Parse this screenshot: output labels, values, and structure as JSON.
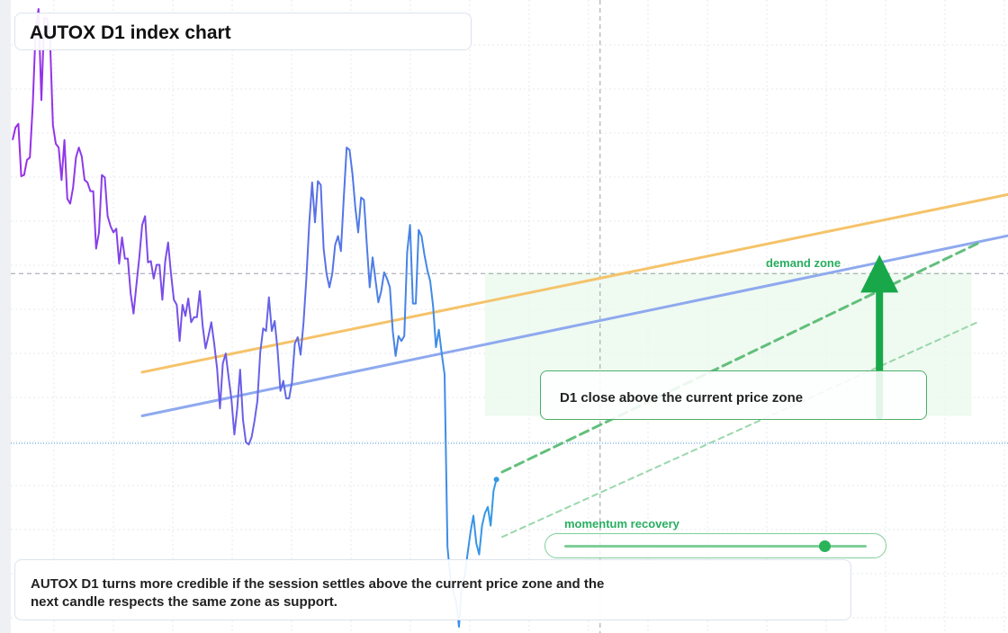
{
  "page": {
    "title": "AUTOX D1 index chart",
    "callout": "D1 close above the current price zone",
    "demand_label": "demand zone",
    "momentum": {
      "label": "momentum recovery",
      "value": 0.86
    },
    "note": "AUTOX D1 turns more credible if the session settles above the current price zone and the next candle respects the same zone as support."
  },
  "colors": {
    "price_start": "#9b2be8",
    "price_end": "#3399e6",
    "orange_line": "#f5c36a",
    "blue_line": "#8ea9ee",
    "green": "#18a84a",
    "zone_fill": "#eaf8ec"
  },
  "chart_data": {
    "type": "line",
    "title": "AUTOX D1 index chart",
    "ylim": [
      0,
      100
    ],
    "current_price": 30.4,
    "series": [
      {
        "values": [
          79,
          81,
          81.6,
          73.2,
          73.4,
          75.8,
          76.2,
          84.6,
          96.6,
          100,
          85.4,
          98.6,
          98.4,
          95.2,
          81.4,
          78.4,
          77.8,
          72.6,
          79,
          69.6,
          68.8,
          71.4,
          76.2,
          77.8,
          76.4,
          72.6,
          72.2,
          70.8,
          70.8,
          61.6,
          64.2,
          73.4,
          73,
          66.8,
          65.2,
          64.2,
          64.8,
          59.2,
          63.4,
          60,
          60,
          54.4,
          51.2,
          55.8,
          60.2,
          65.4,
          66.8,
          59.4,
          59.6,
          56.8,
          59,
          59,
          53.4,
          59.6,
          62.6,
          57.6,
          53.4,
          52.6,
          46.8,
          52.6,
          50.8,
          53.6,
          49.8,
          50.6,
          50.6,
          54.8,
          49.2,
          45.6,
          47.6,
          49.8,
          46.4,
          42.4,
          36,
          43.2,
          44.8,
          41,
          37.4,
          31.8,
          36,
          42.2,
          34.2,
          30.6,
          30.2,
          31.4,
          34,
          37.2,
          45,
          48.8,
          48.4,
          53.8,
          48.4,
          50,
          45.4,
          38.8,
          40.4,
          37.6,
          37.6,
          40.2,
          46.4,
          47.4,
          44.6,
          49.6,
          56.8,
          65.6,
          72.2,
          65.8,
          72.4,
          71.8,
          61.6,
          57.6,
          55.4,
          57.6,
          62.2,
          63.6,
          61.2,
          69.8,
          77.8,
          77.4,
          73.6,
          68.2,
          64.2,
          69.8,
          69.4,
          62.2,
          55.4,
          60.2,
          56.6,
          53,
          54.8,
          57.8,
          56.8,
          55.4,
          48.4,
          44.4,
          47.6,
          46.8,
          47.6,
          61,
          65.4,
          52.8,
          52.8,
          64.6,
          63.6,
          60.6,
          58.2,
          56.4,
          52.4,
          45.8,
          48.6,
          44.8,
          41.4,
          13.8,
          8.8,
          6.6,
          5,
          1,
          7.8,
          9.2,
          12.8,
          16.2,
          18.8,
          14.4,
          12.6,
          17.2,
          19.2,
          20.2,
          17.2,
          22.8,
          24.6
        ]
      }
    ],
    "lines": [
      {
        "name": "orange",
        "from": {
          "i": 45,
          "v": 41.8
        },
        "to": {
          "i": 347,
          "v": 70.4
        }
      },
      {
        "name": "blue",
        "from": {
          "i": 45,
          "v": 34.8
        },
        "to": {
          "i": 347,
          "v": 63.8
        }
      },
      {
        "name": "green-dashed",
        "from": {
          "i": 170,
          "v": 25.8
        },
        "to": {
          "i": 335,
          "v": 62.4
        }
      },
      {
        "name": "green-dashed-light",
        "from": {
          "i": 170,
          "v": 15.4
        },
        "to": {
          "i": 335,
          "v": 49.8
        }
      }
    ],
    "zone": {
      "from_i": 164,
      "to_i": 333,
      "top": 57.8,
      "bottom": 34.8
    },
    "arrow": {
      "i": 301,
      "from": 34.8,
      "to": 60.6
    },
    "crosshair": {
      "i": 204,
      "v": 57.6
    }
  }
}
